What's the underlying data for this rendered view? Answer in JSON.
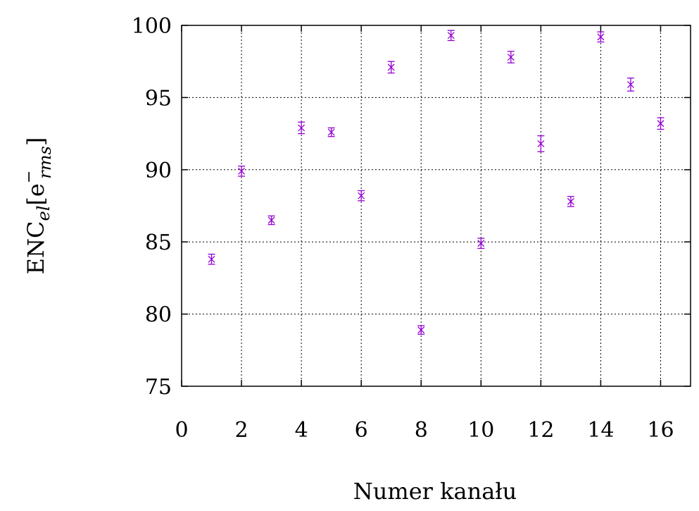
{
  "chart_data": {
    "type": "scatter",
    "title": "",
    "xlabel": "Numer kanału",
    "ylabel_parts": {
      "base": "ENC",
      "sub1": "el",
      "bracket_open": "[e",
      "sup": "−",
      "sub2": "rms",
      "bracket_close": "]"
    },
    "xlim": [
      0,
      17
    ],
    "ylim": [
      75,
      100
    ],
    "xticks": [
      0,
      2,
      4,
      6,
      8,
      10,
      12,
      14,
      16
    ],
    "yticks": [
      75,
      80,
      85,
      90,
      95,
      100
    ],
    "grid": true,
    "marker": "x-with-errorbars",
    "color": "#9400d3",
    "series": [
      {
        "x": [
          1,
          2,
          3,
          4,
          5,
          6,
          7,
          8,
          9,
          10,
          11,
          12,
          13,
          14,
          15,
          16
        ],
        "y": [
          83.8,
          89.9,
          86.5,
          92.9,
          92.6,
          88.2,
          97.1,
          78.9,
          99.3,
          84.9,
          97.8,
          91.8,
          87.8,
          99.2,
          95.9,
          93.2
        ],
        "yerr": [
          0.35,
          0.35,
          0.3,
          0.4,
          0.3,
          0.35,
          0.4,
          0.3,
          0.35,
          0.35,
          0.4,
          0.55,
          0.35,
          0.35,
          0.45,
          0.4
        ]
      }
    ]
  }
}
